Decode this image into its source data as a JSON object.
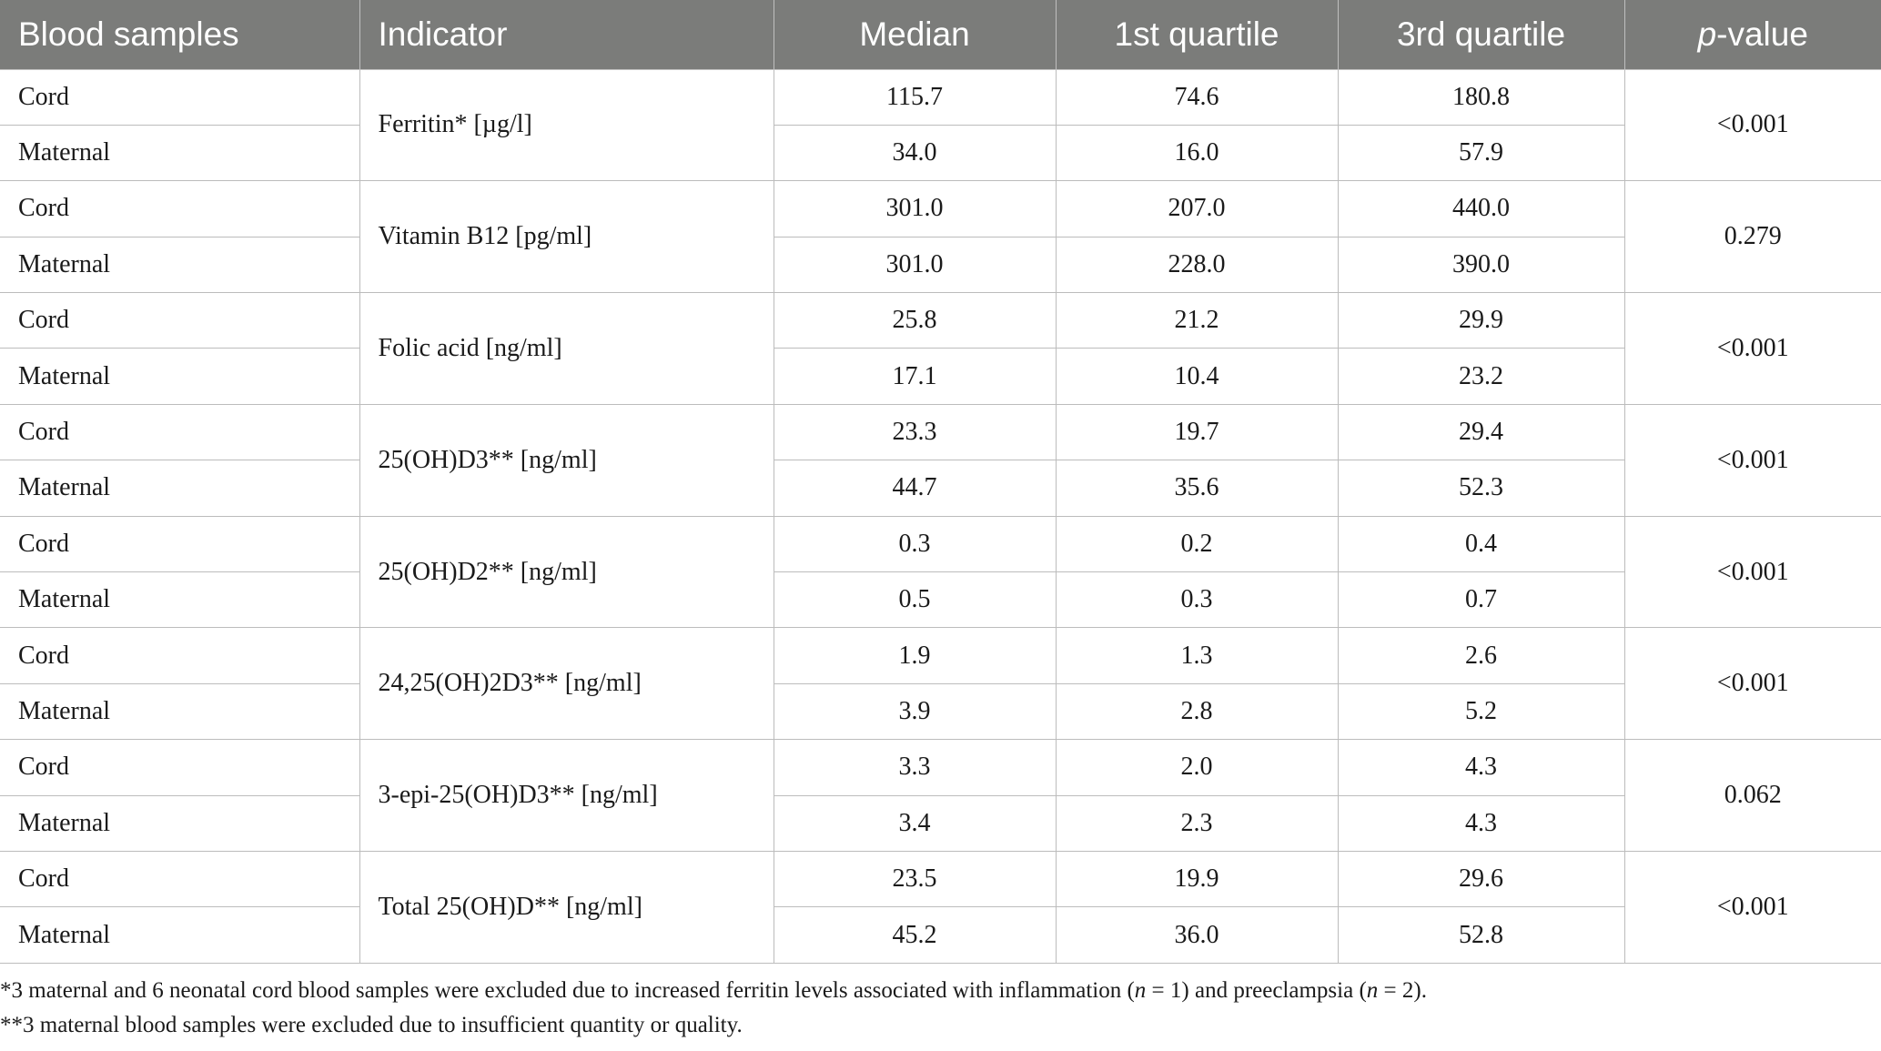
{
  "table": {
    "headers": {
      "blood_samples": "Blood samples",
      "indicator": "Indicator",
      "median": "Median",
      "q1": "1st quartile",
      "q3": "3rd quartile",
      "p_value_italic": "p",
      "p_value_suffix": "-value"
    },
    "groups": [
      {
        "indicator": "Ferritin* [µg/l]",
        "p_value": "<0.001",
        "rows": [
          {
            "sample": "Cord",
            "median": "115.7",
            "q1": "74.6",
            "q3": "180.8"
          },
          {
            "sample": "Maternal",
            "median": "34.0",
            "q1": "16.0",
            "q3": "57.9"
          }
        ]
      },
      {
        "indicator": "Vitamin B12 [pg/ml]",
        "p_value": "0.279",
        "rows": [
          {
            "sample": "Cord",
            "median": "301.0",
            "q1": "207.0",
            "q3": "440.0"
          },
          {
            "sample": "Maternal",
            "median": "301.0",
            "q1": "228.0",
            "q3": "390.0"
          }
        ]
      },
      {
        "indicator": "Folic acid [ng/ml]",
        "p_value": "<0.001",
        "rows": [
          {
            "sample": "Cord",
            "median": "25.8",
            "q1": "21.2",
            "q3": "29.9"
          },
          {
            "sample": "Maternal",
            "median": "17.1",
            "q1": "10.4",
            "q3": "23.2"
          }
        ]
      },
      {
        "indicator": "25(OH)D3** [ng/ml]",
        "p_value": "<0.001",
        "rows": [
          {
            "sample": "Cord",
            "median": "23.3",
            "q1": "19.7",
            "q3": "29.4"
          },
          {
            "sample": "Maternal",
            "median": "44.7",
            "q1": "35.6",
            "q3": "52.3"
          }
        ]
      },
      {
        "indicator": "25(OH)D2** [ng/ml]",
        "p_value": "<0.001",
        "rows": [
          {
            "sample": "Cord",
            "median": "0.3",
            "q1": "0.2",
            "q3": "0.4"
          },
          {
            "sample": "Maternal",
            "median": "0.5",
            "q1": "0.3",
            "q3": "0.7"
          }
        ]
      },
      {
        "indicator": "24,25(OH)2D3** [ng/ml]",
        "p_value": "<0.001",
        "rows": [
          {
            "sample": "Cord",
            "median": "1.9",
            "q1": "1.3",
            "q3": "2.6"
          },
          {
            "sample": "Maternal",
            "median": "3.9",
            "q1": "2.8",
            "q3": "5.2"
          }
        ]
      },
      {
        "indicator": "3-epi-25(OH)D3** [ng/ml]",
        "p_value": "0.062",
        "rows": [
          {
            "sample": "Cord",
            "median": "3.3",
            "q1": "2.0",
            "q3": "4.3"
          },
          {
            "sample": "Maternal",
            "median": "3.4",
            "q1": "2.3",
            "q3": "4.3"
          }
        ]
      },
      {
        "indicator": "Total 25(OH)D** [ng/ml]",
        "p_value": "<0.001",
        "rows": [
          {
            "sample": "Cord",
            "median": "23.5",
            "q1": "19.9",
            "q3": "29.6"
          },
          {
            "sample": "Maternal",
            "median": "45.2",
            "q1": "36.0",
            "q3": "52.8"
          }
        ]
      }
    ]
  },
  "footnotes": {
    "note1_a": "*3 maternal and 6 neonatal cord blood samples were excluded due to increased ferritin levels associated with inflammation (",
    "note1_n1": "n",
    "note1_b": " = 1) and preeclampsia (",
    "note1_n2": "n",
    "note1_c": " = 2).",
    "note2": "**3 maternal blood samples were excluded due to insufficient quantity or quality."
  },
  "colors": {
    "header_background": "#7b7c7a",
    "header_text": "#ffffff",
    "grid_lines": "#bcbcbc"
  }
}
